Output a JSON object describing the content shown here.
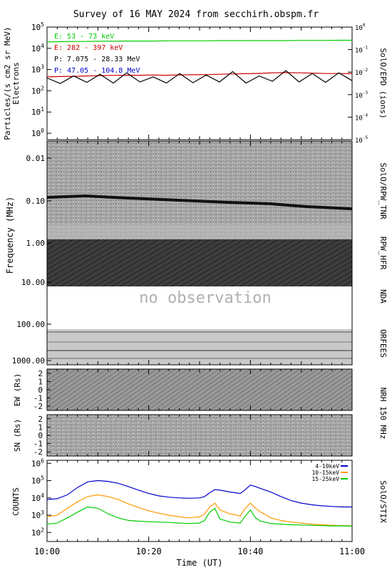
{
  "title": "Survey of 16 MAY 2024 from secchirh.obspm.fr",
  "no_observation": "no observation",
  "xaxis": {
    "label": "Time (UT)",
    "range": [
      "10:00",
      "11:00"
    ],
    "ticks": [
      "10:00",
      "10:20",
      "10:40",
      "11:00"
    ]
  },
  "instruments": {
    "epd": "SolO/EPD (ions)",
    "rpw_tnr": "SolO/RPW_TNR",
    "rpw_hfr": "RPW_HFR",
    "nda": "NDA",
    "orfees": "ORFEES",
    "nrh": "NRH 150 MHz",
    "stix": "SolO/STIX"
  },
  "colors": {
    "electrons_low": "#00cc00",
    "electrons_high": "#cc0000",
    "ions_low": "#000000",
    "ions_high": "#0000cc",
    "stix_4_10": "#0000cc",
    "stix_10_15": "#ff9900",
    "stix_15_25": "#00cc00"
  },
  "chart_data": [
    {
      "type": "line",
      "panel": "particles",
      "ylabel": "Particles/(s cm2 sr MeV)",
      "ylabel2": "Electrons",
      "yscale": "log",
      "ylim": [
        0.5,
        100000
      ],
      "yticks": [
        "10^0",
        "10^1",
        "10^2",
        "10^3",
        "10^4",
        "10^5"
      ],
      "right_yscale": "log",
      "right_ylim": [
        1e-05,
        1
      ],
      "right_yticks": [
        "10^-5",
        "10^-4",
        "10^-3",
        "10^-2",
        "10^-1",
        "10^0"
      ],
      "series": [
        {
          "name": "E: 53 - 73 keV",
          "color": "#00cc00",
          "values": [
            20000,
            20500,
            21000,
            21000,
            21500,
            21500,
            22000,
            22000,
            22000,
            22500,
            22500,
            22500,
            22500,
            23000,
            23000,
            23000,
            23000,
            23000,
            23000,
            23500,
            23500,
            23500,
            24000,
            24000
          ]
        },
        {
          "name": "E: 282 - 397 keV",
          "color": "#cc0000",
          "values": [
            450,
            470,
            480,
            500,
            520,
            530,
            540,
            540,
            550,
            540,
            560,
            570,
            580,
            600,
            620,
            640,
            660,
            700,
            720,
            700,
            680,
            650,
            650,
            640
          ]
        },
        {
          "name": "P: 7.075 - 28.33 MeV",
          "color": "#000000",
          "values": [
            400,
            220,
            500,
            250,
            600,
            230,
            700,
            260,
            450,
            230,
            650,
            240,
            550,
            260,
            800,
            230,
            500,
            280,
            900,
            260,
            650,
            250,
            700,
            300
          ]
        },
        {
          "name": "P: 47.05 - 104.8 MeV",
          "color": "#0000cc",
          "values": []
        }
      ]
    },
    {
      "type": "heatmap",
      "panel": "radio_spectrogram",
      "ylabel": "Frequency (MHz)",
      "yscale": "log",
      "ylim": [
        0.004,
        1500
      ],
      "yticks": [
        "0.01",
        "0.10",
        "1.00",
        "10.00",
        "100.00",
        "1000.00"
      ]
    },
    {
      "type": "heatmap",
      "panel": "nrh_ew",
      "ylabel": "EW (Rs)",
      "ylim": [
        -2.5,
        2.5
      ],
      "yticks": [
        "2",
        "1",
        "0",
        "-1",
        "-2"
      ]
    },
    {
      "type": "heatmap",
      "panel": "nrh_sn",
      "ylabel": "SN (Rs)",
      "ylim": [
        -2.5,
        2.5
      ],
      "yticks": [
        "2",
        "1",
        "0",
        "-1",
        "-2"
      ]
    },
    {
      "type": "line",
      "panel": "stix",
      "ylabel": "COUNTS",
      "yscale": "log",
      "ylim": [
        30,
        1500000
      ],
      "yticks": [
        "10^2",
        "10^3",
        "10^4",
        "10^5",
        "10^6"
      ],
      "x_minutes": [
        0,
        2,
        4,
        6,
        8,
        10,
        12,
        14,
        16,
        18,
        20,
        22,
        24,
        26,
        28,
        30,
        31,
        32,
        33,
        34,
        36,
        38,
        39,
        40,
        41,
        42,
        44,
        46,
        48,
        50,
        52,
        54,
        56,
        58,
        60
      ],
      "series": [
        {
          "name": "4-10keV",
          "color": "#0000cc",
          "values": [
            8000,
            9000,
            15000,
            40000,
            85000,
            100000,
            90000,
            70000,
            45000,
            28000,
            18000,
            13000,
            11000,
            10000,
            9500,
            10000,
            12000,
            20000,
            30000,
            28000,
            22000,
            18000,
            30000,
            55000,
            45000,
            35000,
            22000,
            12000,
            7000,
            5000,
            4000,
            3500,
            3200,
            3000,
            3000
          ]
        },
        {
          "name": "10-15keV",
          "color": "#ff9900",
          "values": [
            800,
            1000,
            2500,
            6000,
            12000,
            15000,
            12000,
            8000,
            4500,
            2800,
            1800,
            1300,
            1000,
            800,
            700,
            800,
            1200,
            3000,
            5000,
            2000,
            1200,
            900,
            2500,
            5000,
            2500,
            1500,
            700,
            500,
            400,
            350,
            300,
            280,
            260,
            250,
            240
          ]
        },
        {
          "name": "15-25keV",
          "color": "#00cc00",
          "values": [
            300,
            350,
            700,
            1500,
            3000,
            2500,
            1200,
            700,
            500,
            450,
            420,
            400,
            380,
            350,
            330,
            350,
            500,
            1500,
            2500,
            600,
            400,
            350,
            900,
            2000,
            700,
            450,
            330,
            300,
            280,
            270,
            260,
            250,
            240,
            240,
            230
          ]
        }
      ]
    }
  ]
}
